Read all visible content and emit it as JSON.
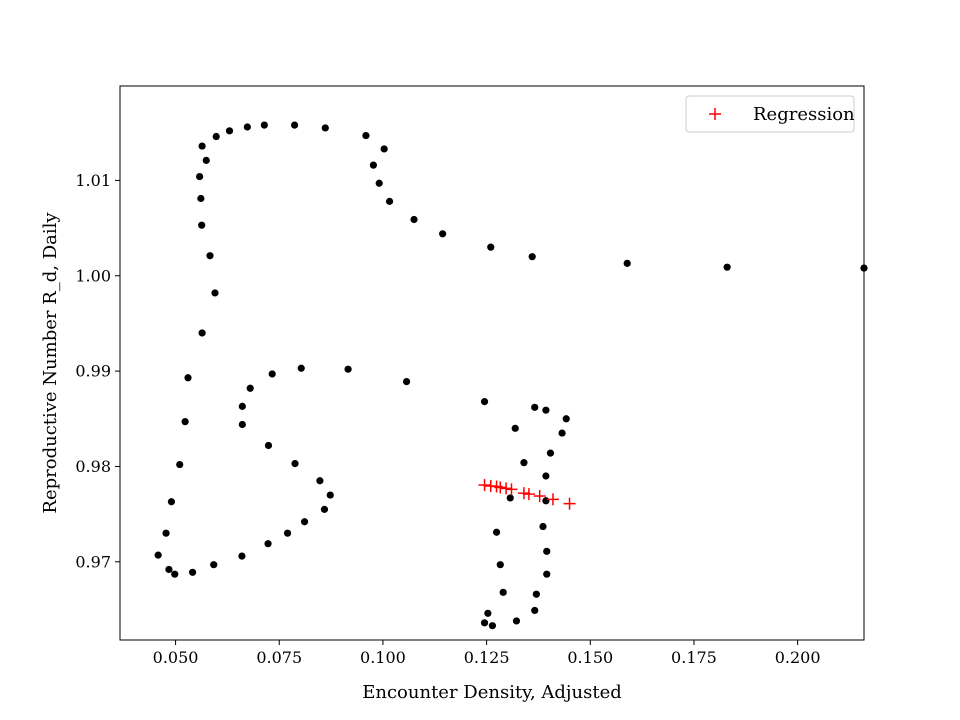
{
  "chart_data": {
    "type": "scatter",
    "title": "",
    "xlabel": "Encounter Density, Adjusted",
    "ylabel": "Reproductive Number R_d, Daily",
    "xlim": [
      0.0366,
      0.216
    ],
    "ylim": [
      0.9618,
      1.0199
    ],
    "xticks": [
      0.05,
      0.075,
      0.1,
      0.125,
      0.15,
      0.175,
      0.2
    ],
    "xtick_labels": [
      "0.050",
      "0.075",
      "0.100",
      "0.125",
      "0.150",
      "0.175",
      "0.200"
    ],
    "yticks": [
      0.97,
      0.98,
      0.99,
      1.0,
      1.01
    ],
    "ytick_labels": [
      "0.97",
      "0.98",
      "0.99",
      "1.00",
      "1.01"
    ],
    "grid": false,
    "legend": {
      "position": "top-right",
      "entries": [
        {
          "label": "Regression",
          "marker": "+",
          "color": "#ff0000"
        }
      ]
    },
    "series": [
      {
        "marker": "circle",
        "color": "#000000",
        "points": [
          [
            0.216,
            1.0008
          ],
          [
            0.183,
            1.0009
          ],
          [
            0.1589,
            1.0013
          ],
          [
            0.136,
            1.002
          ],
          [
            0.126,
            1.003
          ],
          [
            0.1144,
            1.0044
          ],
          [
            0.1075,
            1.0059
          ],
          [
            0.1016,
            1.0078
          ],
          [
            0.0991,
            1.0097
          ],
          [
            0.0977,
            1.0116
          ],
          [
            0.1003,
            1.0133
          ],
          [
            0.0959,
            1.0147
          ],
          [
            0.0861,
            1.0155
          ],
          [
            0.0787,
            1.0158
          ],
          [
            0.0714,
            1.0158
          ],
          [
            0.0673,
            1.0156
          ],
          [
            0.063,
            1.0152
          ],
          [
            0.0598,
            1.0146
          ],
          [
            0.0564,
            1.0136
          ],
          [
            0.0574,
            1.0121
          ],
          [
            0.0558,
            1.0104
          ],
          [
            0.0561,
            1.0081
          ],
          [
            0.0563,
            1.0053
          ],
          [
            0.0583,
            1.0021
          ],
          [
            0.0595,
            0.9982
          ],
          [
            0.0564,
            0.994
          ],
          [
            0.053,
            0.9893
          ],
          [
            0.0523,
            0.9847
          ],
          [
            0.051,
            0.9802
          ],
          [
            0.049,
            0.9763
          ],
          [
            0.0477,
            0.973
          ],
          [
            0.0458,
            0.9707
          ],
          [
            0.0484,
            0.9692
          ],
          [
            0.0498,
            0.9687
          ],
          [
            0.0541,
            0.9689
          ],
          [
            0.0592,
            0.9697
          ],
          [
            0.066,
            0.9706
          ],
          [
            0.0723,
            0.9719
          ],
          [
            0.077,
            0.973
          ],
          [
            0.0811,
            0.9742
          ],
          [
            0.0859,
            0.9755
          ],
          [
            0.0873,
            0.977
          ],
          [
            0.0848,
            0.9785
          ],
          [
            0.0788,
            0.9803
          ],
          [
            0.0724,
            0.9822
          ],
          [
            0.0661,
            0.9844
          ],
          [
            0.0661,
            0.9863
          ],
          [
            0.068,
            0.9882
          ],
          [
            0.0733,
            0.9897
          ],
          [
            0.0803,
            0.9903
          ],
          [
            0.0916,
            0.9902
          ],
          [
            0.1057,
            0.9889
          ],
          [
            0.1245,
            0.9868
          ],
          [
            0.1366,
            0.9862
          ],
          [
            0.1393,
            0.9859
          ],
          [
            0.1442,
            0.985
          ],
          [
            0.1432,
            0.9835
          ],
          [
            0.1319,
            0.984
          ],
          [
            0.1404,
            0.9814
          ],
          [
            0.134,
            0.9804
          ],
          [
            0.1393,
            0.979
          ],
          [
            0.1307,
            0.9767
          ],
          [
            0.1393,
            0.9764
          ],
          [
            0.1386,
            0.9737
          ],
          [
            0.1274,
            0.9731
          ],
          [
            0.1395,
            0.9711
          ],
          [
            0.1283,
            0.9697
          ],
          [
            0.1395,
            0.9687
          ],
          [
            0.137,
            0.9666
          ],
          [
            0.129,
            0.9668
          ],
          [
            0.1366,
            0.9649
          ],
          [
            0.1253,
            0.9646
          ],
          [
            0.1245,
            0.9636
          ],
          [
            0.1322,
            0.9638
          ],
          [
            0.1264,
            0.9633
          ]
        ]
      },
      {
        "name": "Regression",
        "marker": "+",
        "color": "#ff0000",
        "points": [
          [
            0.1245,
            0.97805
          ],
          [
            0.126,
            0.97795
          ],
          [
            0.1274,
            0.9779
          ],
          [
            0.1283,
            0.9778
          ],
          [
            0.1297,
            0.9777
          ],
          [
            0.131,
            0.9776
          ],
          [
            0.134,
            0.9772
          ],
          [
            0.1352,
            0.9771
          ],
          [
            0.1378,
            0.9769
          ],
          [
            0.141,
            0.97655
          ],
          [
            0.145,
            0.9761
          ]
        ]
      }
    ]
  }
}
